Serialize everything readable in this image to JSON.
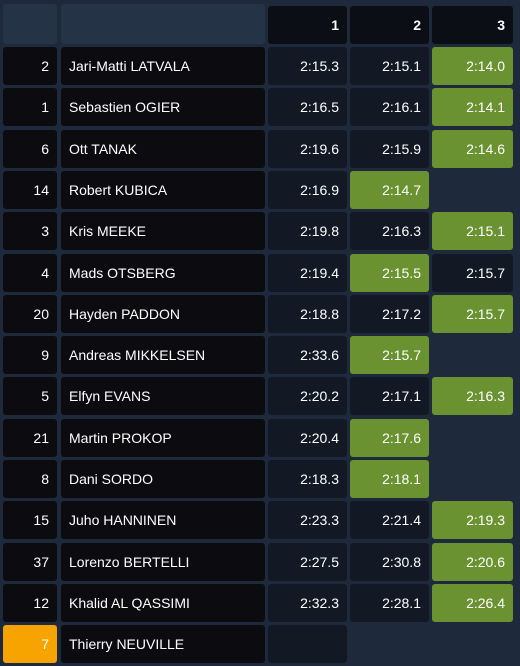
{
  "header": {
    "columns": [
      "1",
      "2",
      "3"
    ]
  },
  "highlight_color": "#6b9230",
  "rows": [
    {
      "number": "2",
      "name": "Jari-Matti LATVALA",
      "times": [
        "2:15.3",
        "2:15.1",
        "2:14.0"
      ]
    },
    {
      "number": "1",
      "name": "Sebastien OGIER",
      "times": [
        "2:16.5",
        "2:16.1",
        "2:14.1"
      ]
    },
    {
      "number": "6",
      "name": "Ott TANAK",
      "times": [
        "2:19.6",
        "2:15.9",
        "2:14.6"
      ]
    },
    {
      "number": "14",
      "name": "Robert KUBICA",
      "times": [
        "2:16.9",
        "2:14.7"
      ]
    },
    {
      "number": "3",
      "name": "Kris MEEKE",
      "times": [
        "2:19.8",
        "2:16.3",
        "2:15.1"
      ]
    },
    {
      "number": "4",
      "name": "Mads OTSBERG",
      "times": [
        "2:19.4",
        "2:15.5",
        "2:15.7"
      ]
    },
    {
      "number": "20",
      "name": "Hayden PADDON",
      "times": [
        "2:18.8",
        "2:17.2",
        "2:15.7"
      ]
    },
    {
      "number": "9",
      "name": "Andreas MIKKELSEN",
      "times": [
        "2:33.6",
        "2:15.7"
      ]
    },
    {
      "number": "5",
      "name": "Elfyn EVANS",
      "times": [
        "2:20.2",
        "2:17.1",
        "2:16.3"
      ]
    },
    {
      "number": "21",
      "name": "Martin PROKOP",
      "times": [
        "2:20.4",
        "2:17.6"
      ]
    },
    {
      "number": "8",
      "name": "Dani SORDO",
      "times": [
        "2:18.3",
        "2:18.1"
      ]
    },
    {
      "number": "15",
      "name": "Juho HANNINEN",
      "times": [
        "2:23.3",
        "2:21.4",
        "2:19.3"
      ]
    },
    {
      "number": "37",
      "name": "Lorenzo BERTELLI",
      "times": [
        "2:27.5",
        "2:30.8",
        "2:20.6"
      ]
    },
    {
      "number": "12",
      "name": "Khalid AL QASSIMI",
      "times": [
        "2:32.3",
        "2:28.1",
        "2:26.4"
      ]
    },
    {
      "number": "7",
      "name": "Thierry NEUVILLE",
      "times": [
        null
      ],
      "selected": true,
      "selected_color": "#f7a400"
    }
  ]
}
